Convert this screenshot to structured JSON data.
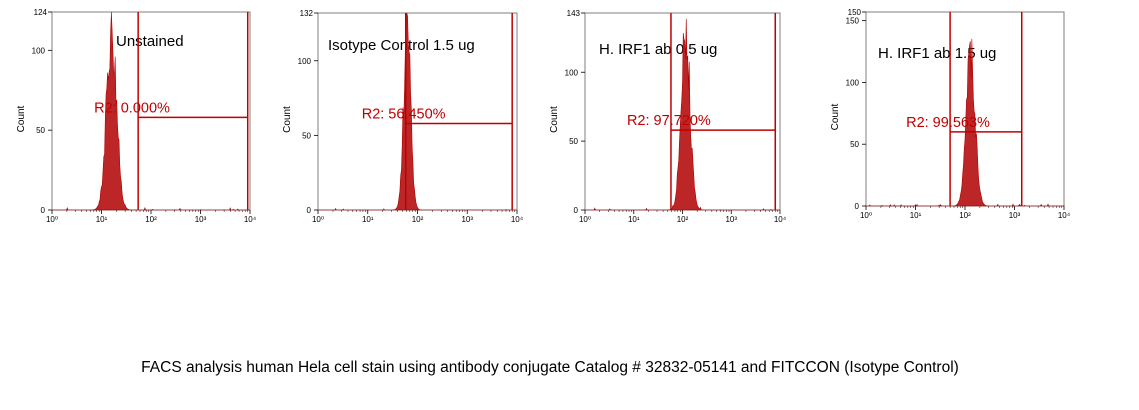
{
  "panel_titles": [
    "Unstained",
    "Isotype Control 1.5 ug",
    "H. IRF1 ab 0.5 ug",
    "H. IRF1 ab 1.5 ug"
  ],
  "caption": "FACS analysis human Hela cell stain using antibody conjugate Catalog # 32832-05141 and FITCCON (Isotype Control)",
  "colors": {
    "histogram": "#b00000",
    "gate": "#c00000",
    "axis": "#7f7f7f"
  },
  "chart_data": [
    {
      "type": "area",
      "title": "Unstained",
      "xscale": "log",
      "xlim": [
        1,
        10000
      ],
      "ylabel": "Count",
      "ylim": [
        0,
        124
      ],
      "y_max_label": "124",
      "y_ticks": [
        "0",
        "50",
        "100"
      ],
      "x_ticks": [
        "10⁰",
        "10¹",
        "10²",
        "10³",
        "10⁴"
      ],
      "peak": {
        "center": 16,
        "height": 124,
        "width_decades": 0.1
      },
      "gate": {
        "label": "R2: 0.000%",
        "x_range": [
          55,
          9000
        ],
        "level": 58
      }
    },
    {
      "type": "area",
      "title": "Isotype Control 1.5 ug",
      "xscale": "log",
      "xlim": [
        1,
        10000
      ],
      "ylabel": "Count",
      "ylim": [
        0,
        132
      ],
      "y_max_label": "132",
      "y_ticks": [
        "0",
        "50",
        "100"
      ],
      "x_ticks": [
        "10⁰",
        "10¹",
        "10²",
        "10³",
        "10⁴"
      ],
      "peak": {
        "center": 62,
        "height": 132,
        "width_decades": 0.07
      },
      "gate": {
        "label": "R2: 56.450%",
        "x_range": [
          58,
          8000
        ],
        "level": 58
      }
    },
    {
      "type": "area",
      "title": "H. IRF1 ab 0.5 ug",
      "xscale": "log",
      "xlim": [
        1,
        10000
      ],
      "ylabel": "Count",
      "ylim": [
        0,
        143
      ],
      "y_max_label": "143",
      "y_ticks": [
        "0",
        "50",
        "100"
      ],
      "x_ticks": [
        "10⁰",
        "10¹",
        "10²",
        "10³",
        "10⁴"
      ],
      "peak": {
        "center": 115,
        "height": 143,
        "width_decades": 0.09
      },
      "gate": {
        "label": "R2: 97.720%",
        "x_range": [
          58,
          8000
        ],
        "level": 58
      }
    },
    {
      "type": "area",
      "title": "H. IRF1 ab 1.5 ug",
      "xscale": "log",
      "xlim": [
        1,
        10000
      ],
      "ylabel": "Count",
      "ylim": [
        0,
        157
      ],
      "y_max_label": "150",
      "y_ticks": [
        "0",
        "50",
        "100",
        "150"
      ],
      "x_ticks": [
        "10⁰",
        "10¹",
        "10²",
        "10³",
        "10⁴"
      ],
      "peak": {
        "center": 130,
        "height": 135,
        "width_decades": 0.09
      },
      "gate": {
        "label": "R2: 99.563%",
        "x_range": [
          50,
          1400
        ],
        "level": 60
      }
    }
  ]
}
